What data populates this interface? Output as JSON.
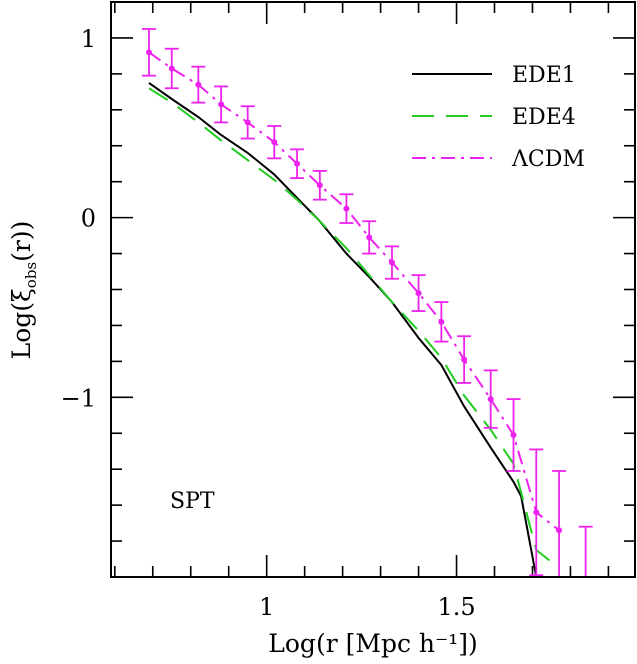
{
  "chart_data": {
    "type": "line",
    "xlabel": "Log(r [Mpc h⁻¹])",
    "ylabel": "Log(ξobs(r))",
    "ylabel_parts": {
      "prefix": "Log(",
      "xi": "ξ",
      "sub": "obs",
      "suffix": "(r))"
    },
    "xlim": [
      0.59,
      1.97
    ],
    "ylim": [
      -2.0,
      1.2
    ],
    "x_ticks": [
      {
        "value": 1.0,
        "label": "1"
      },
      {
        "value": 1.5,
        "label": "1.5"
      }
    ],
    "y_ticks": [
      {
        "value": 1.0,
        "label": "1"
      },
      {
        "value": 0.0,
        "label": "0"
      },
      {
        "value": -1.0,
        "label": "−1"
      }
    ],
    "annotation": "SPT",
    "legend_position": "top-right",
    "grid": false,
    "series": [
      {
        "name": "EDE1",
        "color": "#000000",
        "style": "solid",
        "x": [
          0.69,
          0.75,
          0.82,
          0.88,
          0.95,
          1.02,
          1.08,
          1.14,
          1.21,
          1.27,
          1.33,
          1.4,
          1.46,
          1.52,
          1.59,
          1.65,
          1.67,
          1.71
        ],
        "y": [
          0.75,
          0.66,
          0.56,
          0.46,
          0.36,
          0.24,
          0.11,
          -0.02,
          -0.2,
          -0.33,
          -0.47,
          -0.67,
          -0.82,
          -1.05,
          -1.28,
          -1.47,
          -1.55,
          -2.0
        ]
      },
      {
        "name": "EDE4",
        "color": "#22cc22",
        "style": "dashed",
        "x": [
          0.69,
          0.75,
          0.82,
          0.88,
          0.95,
          1.02,
          1.08,
          1.14,
          1.21,
          1.27,
          1.33,
          1.4,
          1.46,
          1.52,
          1.59,
          1.65,
          1.71,
          1.77
        ],
        "y": [
          0.72,
          0.64,
          0.53,
          0.43,
          0.32,
          0.21,
          0.1,
          -0.02,
          -0.17,
          -0.32,
          -0.47,
          -0.63,
          -0.78,
          -0.99,
          -1.18,
          -1.37,
          -1.85,
          -1.95
        ]
      },
      {
        "name": "ΛCDM",
        "color": "#ee22ee",
        "style": "dashdot",
        "x": [
          0.69,
          0.75,
          0.82,
          0.88,
          0.95,
          1.02,
          1.08,
          1.14,
          1.21,
          1.27,
          1.33,
          1.4,
          1.46,
          1.52,
          1.59,
          1.65,
          1.71,
          1.77
        ],
        "y": [
          0.92,
          0.83,
          0.74,
          0.63,
          0.53,
          0.42,
          0.3,
          0.18,
          0.05,
          -0.11,
          -0.25,
          -0.42,
          -0.58,
          -0.79,
          -1.01,
          -1.21,
          -1.64,
          -1.74
        ],
        "yerr": [
          0.13,
          0.11,
          0.1,
          0.1,
          0.09,
          0.09,
          0.08,
          0.08,
          0.08,
          0.09,
          0.09,
          0.1,
          0.11,
          0.13,
          0.16,
          0.2,
          0.35,
          0.33
        ]
      },
      {
        "name": "",
        "color": "#ee22ee",
        "style": "errorbar-only",
        "x": [
          1.84
        ],
        "y": [
          -2.0
        ],
        "yerr": [
          0.28
        ]
      }
    ]
  }
}
